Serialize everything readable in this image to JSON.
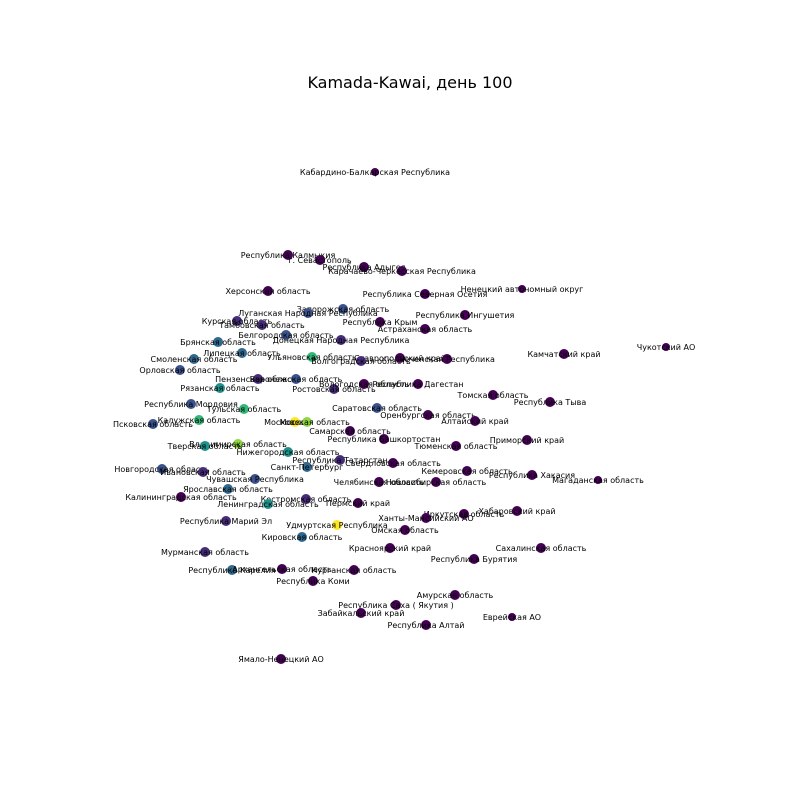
{
  "title": "Kamada-Kawai, день 100",
  "colors": {
    "dark_purple": "#440154",
    "purple": "#472c7a",
    "indigo": "#3b528b",
    "blue": "#31688e",
    "teal": "#21918c",
    "green": "#35b779",
    "lime": "#90d743",
    "yellow": "#fde725"
  },
  "nodes": [
    {
      "label": "Кабардино-Балкарская Республика",
      "color": "dark_purple",
      "small": true
    },
    {
      "label": "Республика Калмыкия",
      "color": "dark_purple"
    },
    {
      "label": "г. Севастополь",
      "color": "dark_purple"
    },
    {
      "label": "Республика Адыгея",
      "color": "dark_purple"
    },
    {
      "label": "Карачаево-Черкесская Республика",
      "color": "dark_purple"
    },
    {
      "label": "Херсонская область",
      "color": "dark_purple"
    },
    {
      "label": "Республика Северная Осетия",
      "color": "dark_purple"
    },
    {
      "label": "Ненецкий автономный округ",
      "color": "dark_purple",
      "small": true
    },
    {
      "label": "Запорожская область",
      "color": "indigo"
    },
    {
      "label": "Луганская Народная Республика",
      "color": "indigo"
    },
    {
      "label": "Курская область",
      "color": "purple"
    },
    {
      "label": "Тамбовская область",
      "color": "purple"
    },
    {
      "label": "Республика Крым",
      "color": "dark_purple"
    },
    {
      "label": "Республика Ингушетия",
      "color": "dark_purple"
    },
    {
      "label": "Астраханская область",
      "color": "dark_purple"
    },
    {
      "label": "Белгородская область",
      "color": "indigo"
    },
    {
      "label": "Донецкая Народная Республика",
      "color": "purple"
    },
    {
      "label": "Брянская область",
      "color": "blue"
    },
    {
      "label": "Липецкая область",
      "color": "blue"
    },
    {
      "label": "Ульяновская область",
      "color": "green"
    },
    {
      "label": "Ставропольский край",
      "color": "dark_purple"
    },
    {
      "label": "Волгоградская область",
      "color": "purple"
    },
    {
      "label": "Чеченская Республика",
      "color": "dark_purple"
    },
    {
      "label": "Камчатский край",
      "color": "dark_purple"
    },
    {
      "label": "Чукотский АО",
      "color": "dark_purple",
      "small": true
    },
    {
      "label": "Смоленская область",
      "color": "blue"
    },
    {
      "label": "Орловская область",
      "color": "indigo"
    },
    {
      "label": "Пензенская область",
      "color": "purple"
    },
    {
      "label": "Воронежская область",
      "color": "indigo"
    },
    {
      "label": "Рязанская область",
      "color": "teal"
    },
    {
      "label": "Ростовская область",
      "color": "purple"
    },
    {
      "label": "Вологодская область",
      "color": "dark_purple"
    },
    {
      "label": "Республика Дагестан",
      "color": "dark_purple"
    },
    {
      "label": "Томская область",
      "color": "dark_purple"
    },
    {
      "label": "Республика Тыва",
      "color": "dark_purple"
    },
    {
      "label": "Республика Мордовия",
      "color": "indigo"
    },
    {
      "label": "Тульская область",
      "color": "green"
    },
    {
      "label": "Калужская область",
      "color": "green"
    },
    {
      "label": "Псковская область",
      "color": "indigo"
    },
    {
      "label": "Москва",
      "color": "yellow"
    },
    {
      "label": "Московская область",
      "color": "lime"
    },
    {
      "label": "Саратовская область",
      "color": "indigo"
    },
    {
      "label": "Оренбургская область",
      "color": "dark_purple"
    },
    {
      "label": "Алтайский край",
      "color": "dark_purple"
    },
    {
      "label": "Самарская область",
      "color": "dark_purple"
    },
    {
      "label": "Республика Башкортостан",
      "color": "dark_purple"
    },
    {
      "label": "Приморский край",
      "color": "dark_purple"
    },
    {
      "label": "Тюменская область",
      "color": "dark_purple"
    },
    {
      "label": "Владимирская область",
      "color": "lime"
    },
    {
      "label": "Тверская область",
      "color": "teal"
    },
    {
      "label": "Нижегородская область",
      "color": "teal"
    },
    {
      "label": "Республика Татарстан",
      "color": "purple"
    },
    {
      "label": "Санкт-Петербург",
      "color": "blue"
    },
    {
      "label": "Свердловская область",
      "color": "dark_purple"
    },
    {
      "label": "Новгородская область",
      "color": "indigo"
    },
    {
      "label": "Ивановская область",
      "color": "purple"
    },
    {
      "label": "Кемеровская область",
      "color": "dark_purple"
    },
    {
      "label": "Республика Хакасия",
      "color": "dark_purple"
    },
    {
      "label": "Магаданская область",
      "color": "dark_purple",
      "small": true
    },
    {
      "label": "Чувашская Республика",
      "color": "indigo"
    },
    {
      "label": "Ярославская область",
      "color": "blue"
    },
    {
      "label": "Челябинская область",
      "color": "dark_purple"
    },
    {
      "label": "Новосибирская область",
      "color": "dark_purple"
    },
    {
      "label": "Калининградская область",
      "color": "dark_purple"
    },
    {
      "label": "Костромская область",
      "color": "purple"
    },
    {
      "label": "Ленинградская область",
      "color": "teal"
    },
    {
      "label": "Пермский край",
      "color": "dark_purple"
    },
    {
      "label": "Хабаровский край",
      "color": "dark_purple"
    },
    {
      "label": "Иркутская область",
      "color": "dark_purple"
    },
    {
      "label": "Ханты-Мансийский АО",
      "color": "dark_purple"
    },
    {
      "label": "Республика Марий Эл",
      "color": "purple"
    },
    {
      "label": "Удмуртская Республика",
      "color": "yellow"
    },
    {
      "label": "Омская область",
      "color": "dark_purple"
    },
    {
      "label": "Кировская область",
      "color": "blue"
    },
    {
      "label": "Красноярский край",
      "color": "dark_purple"
    },
    {
      "label": "Сахалинская область",
      "color": "dark_purple"
    },
    {
      "label": "Мурманская область",
      "color": "purple"
    },
    {
      "label": "Республика Бурятия",
      "color": "dark_purple"
    },
    {
      "label": "Республика Карелия",
      "color": "blue"
    },
    {
      "label": "Архангельская область",
      "color": "dark_purple"
    },
    {
      "label": "Курганская область",
      "color": "dark_purple"
    },
    {
      "label": "Республика Коми",
      "color": "dark_purple"
    },
    {
      "label": "Амурская область",
      "color": "dark_purple"
    },
    {
      "label": "Республика Саха ( Якутия )",
      "color": "dark_purple"
    },
    {
      "label": "Забайкальский край",
      "color": "dark_purple"
    },
    {
      "label": "Еврейская АО",
      "color": "dark_purple",
      "small": true
    },
    {
      "label": "Республика Алтай",
      "color": "dark_purple"
    },
    {
      "label": "Ямало-Ненецкий АО",
      "color": "dark_purple"
    }
  ]
}
